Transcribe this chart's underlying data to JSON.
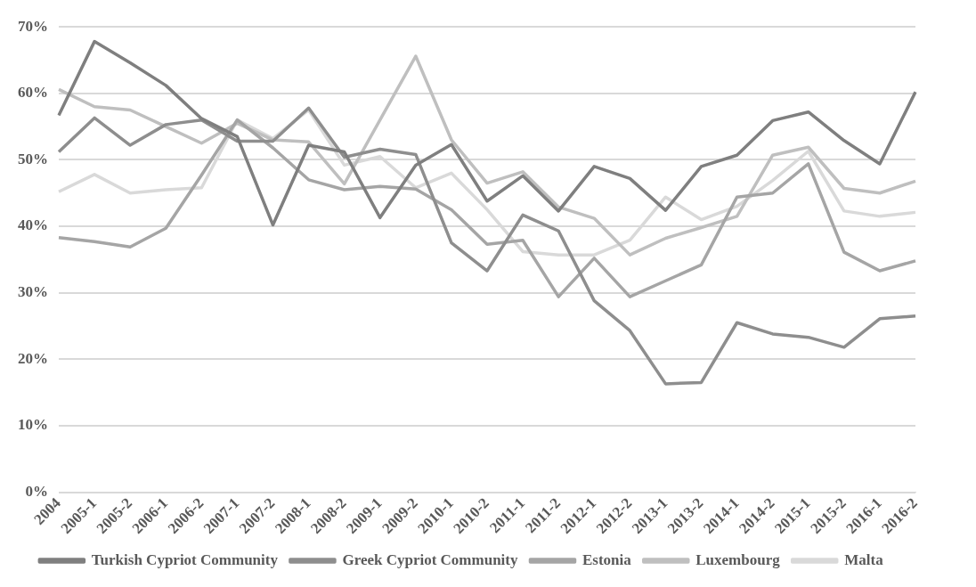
{
  "chart_data": {
    "type": "line",
    "categories": [
      "2004",
      "2005-1",
      "2005-2",
      "2006-1",
      "2006-2",
      "2007-1",
      "2007-2",
      "2008-1",
      "2008-2",
      "2009-1",
      "2009-2",
      "2010-1",
      "2010-2",
      "2011-1",
      "2011-2",
      "2012-1",
      "2012-2",
      "2013-1",
      "2013-2",
      "2014-1",
      "2014-2",
      "2015-1",
      "2015-2",
      "2016-1",
      "2016-2"
    ],
    "series": [
      {
        "name": "Turkish Cypriot Community",
        "color": "#7f7f7f",
        "values": [
          56.7,
          67.8,
          64.6,
          61.2,
          56.2,
          53.5,
          40.2,
          52.2,
          51.2,
          41.3,
          49.2,
          52.3,
          43.8,
          47.6,
          42.3,
          49,
          47.2,
          42.4,
          49,
          50.7,
          55.9,
          57.2,
          52.9,
          49.4,
          60.2
        ]
      },
      {
        "name": "Greek Cypriot Community",
        "color": "#8e8e8e",
        "values": [
          51.2,
          56.3,
          52.2,
          55.3,
          56,
          52.8,
          52.8,
          57.8,
          50.4,
          51.6,
          50.8,
          37.5,
          33.3,
          41.7,
          39.3,
          28.8,
          24.3,
          16.3,
          16.5,
          25.5,
          23.8,
          23.3,
          21.8,
          26.1,
          26.5
        ]
      },
      {
        "name": "Estonia",
        "color": "#a5a5a5",
        "values": [
          38.3,
          37.7,
          36.9,
          39.7,
          47.7,
          56,
          51.8,
          47,
          45.5,
          46,
          45.6,
          42.5,
          37.3,
          37.9,
          29.4,
          35.2,
          29.4,
          31.8,
          34.2,
          44.4,
          45,
          49.4,
          36.1,
          33.3,
          34.8
        ]
      },
      {
        "name": "Luxembourg",
        "color": "#bfbfbf",
        "values": [
          60.6,
          58,
          57.5,
          55,
          52.5,
          55.5,
          53,
          52.7,
          46.4,
          56,
          65.6,
          53,
          46.5,
          48.2,
          42.9,
          41.2,
          35.7,
          38.2,
          39.8,
          41.5,
          50.7,
          51.9,
          45.7,
          45,
          46.8
        ]
      },
      {
        "name": "Malta",
        "color": "#d9d9d9",
        "values": [
          45.2,
          47.8,
          45,
          45.5,
          45.8,
          56,
          53.2,
          57.5,
          49.2,
          50.5,
          45.8,
          48,
          42.5,
          36.2,
          35.7,
          35.7,
          37.9,
          44.4,
          41,
          43,
          46.9,
          51.3,
          42.3,
          41.5,
          42.1
        ]
      }
    ],
    "ylim": [
      0,
      70
    ],
    "yticks": [
      {
        "value": 0,
        "label": "0%"
      },
      {
        "value": 10,
        "label": "10%"
      },
      {
        "value": 20,
        "label": "20%"
      },
      {
        "value": 30,
        "label": "30%"
      },
      {
        "value": 40,
        "label": "40%"
      },
      {
        "value": 50,
        "label": "50%"
      },
      {
        "value": 60,
        "label": "60%"
      },
      {
        "value": 70,
        "label": "70%"
      }
    ],
    "grid": "y",
    "legend": "bottom",
    "marker": "none",
    "line_style": "solid"
  }
}
